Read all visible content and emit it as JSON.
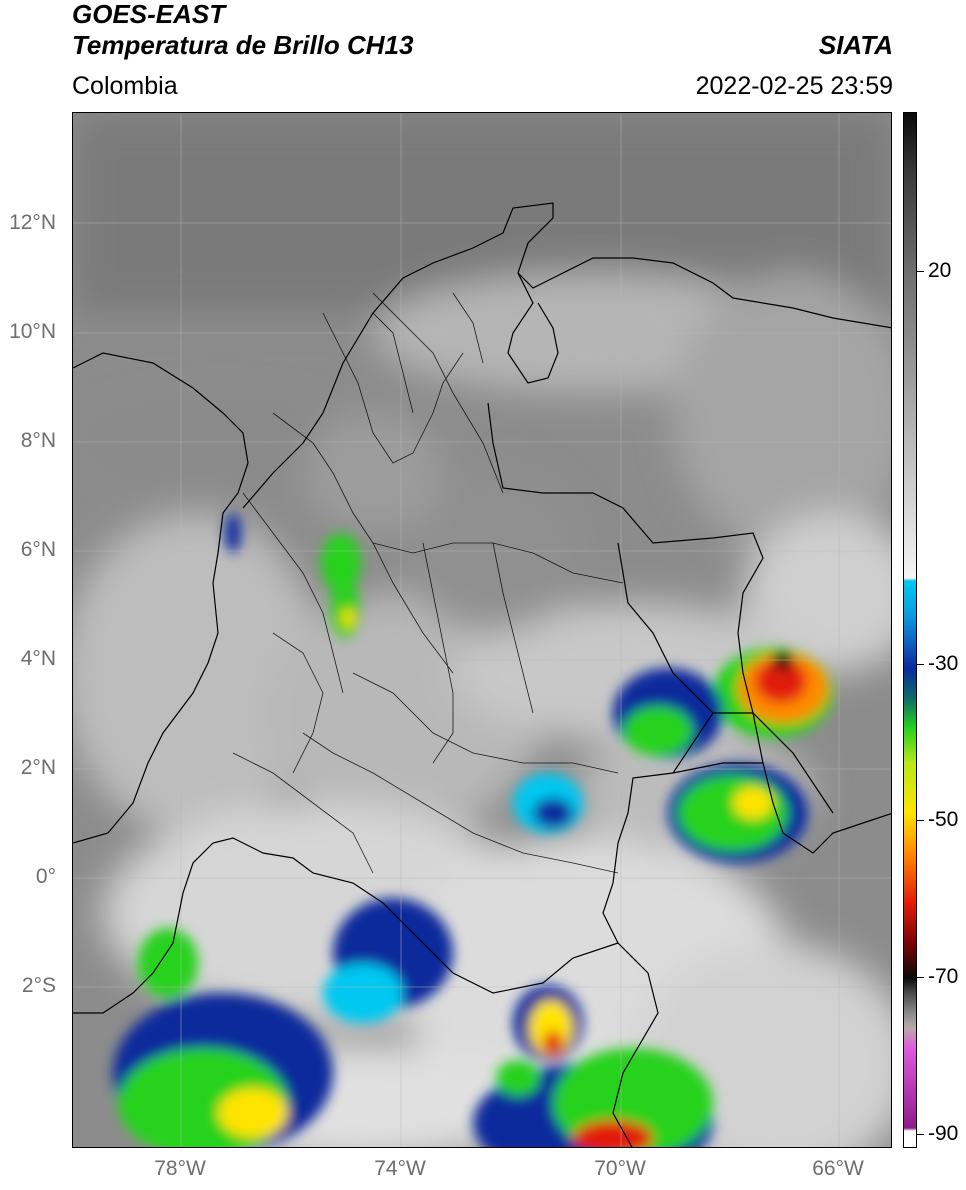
{
  "header": {
    "satellite": "GOES-EAST",
    "product": "Temperatura de Brillo CH13",
    "region": "Colombia",
    "organization": "SIATA",
    "datetime": "2022-02-25 23:59"
  },
  "axes": {
    "lat_labels": [
      "12°N",
      "10°N",
      "8°N",
      "6°N",
      "4°N",
      "2°N",
      "0°",
      "2°S"
    ],
    "lon_labels": [
      "78°W",
      "74°W",
      "70°W",
      "66°W"
    ]
  },
  "colorbar": {
    "tick_labels": [
      "20",
      "-30",
      "-50",
      "-70",
      "-90"
    ],
    "colors": {
      "cyan": "#00c8f0",
      "blue": "#0a2a9c",
      "green": "#27d21e",
      "yellow": "#ffe400",
      "orange": "#ff8a00",
      "red": "#e21b0b",
      "black": "#0a0a0a",
      "magenta": "#e05adf",
      "purple": "#8e1a8a"
    }
  },
  "map_layers": {
    "background": "brightness-temperature-imagery",
    "overlays": [
      "coastline",
      "country-borders",
      "department-borders",
      "graticule"
    ]
  }
}
